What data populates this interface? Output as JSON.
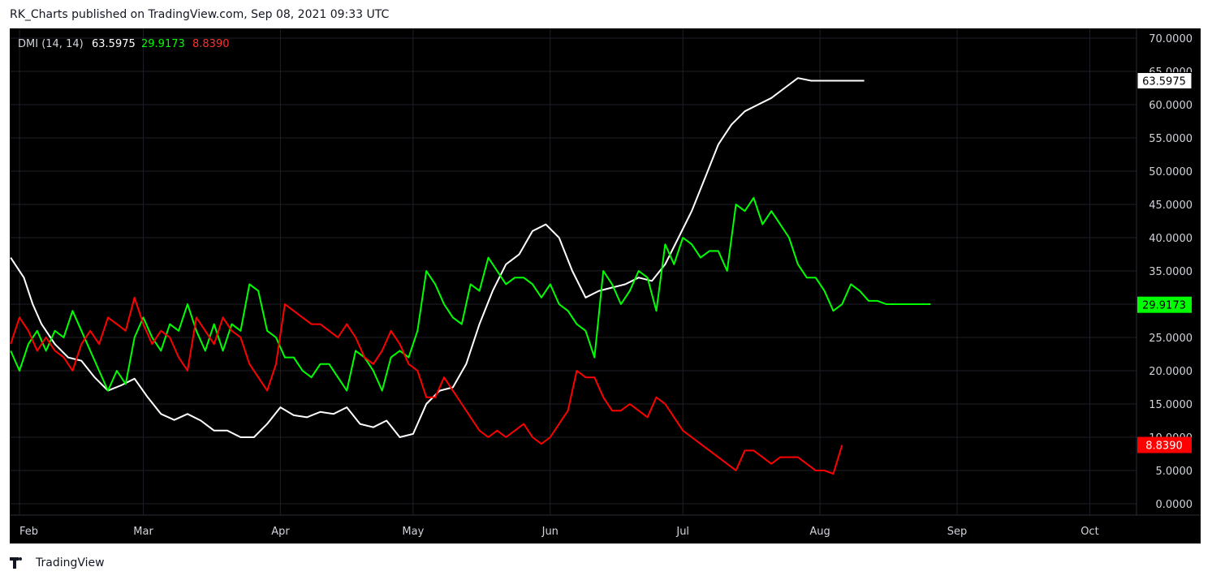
{
  "header": {
    "text": "RK_Charts published on TradingView.com, Sep 08, 2021 09:33 UTC"
  },
  "legend": {
    "name": "DMI (14, 14)",
    "adx_value": "63.5975",
    "plus_di_value": "29.9173",
    "minus_di_value": "8.8390"
  },
  "footer": {
    "brand": "TradingView"
  },
  "colors": {
    "background": "#000000",
    "grid": "#1e2028",
    "adx": "#ffffff",
    "plus_di": "#00ff00",
    "minus_di": "#ff0000",
    "axis_text": "#d1d4dc"
  },
  "chart_data": {
    "type": "line",
    "title": "DMI (14, 14)",
    "ylim": [
      -2,
      72
    ],
    "y_ticks": [
      "0.0000",
      "5.0000",
      "10.0000",
      "15.0000",
      "20.0000",
      "25.0000",
      "30.0000",
      "35.0000",
      "40.0000",
      "45.0000",
      "50.0000",
      "55.0000",
      "60.0000",
      "65.0000",
      "70.0000"
    ],
    "x_labels": [
      "Feb",
      "Mar",
      "Apr",
      "May",
      "Jun",
      "Jul",
      "Aug",
      "Sep",
      "Oct"
    ],
    "x_label_days": [
      0,
      28,
      59,
      89,
      120,
      150,
      181,
      212,
      242
    ],
    "x_range": [
      0,
      251
    ],
    "grid": true,
    "last_value_labels": [
      {
        "series": "ADX",
        "value": 63.5975,
        "text": "63.5975"
      },
      {
        "series": "+DI",
        "value": 29.9173,
        "text": "29.9173"
      },
      {
        "series": "-DI",
        "value": 8.839,
        "text": "8.8390"
      }
    ],
    "series": [
      {
        "name": "ADX",
        "color": "#ffffff",
        "x": [
          -2,
          1,
          3,
          5,
          8,
          11,
          14,
          17,
          20,
          23,
          26,
          29,
          32,
          35,
          38,
          41,
          44,
          47,
          50,
          53,
          56,
          59,
          62,
          65,
          68,
          71,
          74,
          77,
          80,
          83,
          86,
          89,
          92,
          95,
          98,
          101,
          104,
          107,
          110,
          113,
          116,
          119,
          122,
          125,
          128,
          131,
          134,
          137,
          140,
          143,
          146,
          149,
          152,
          155,
          158,
          161,
          164,
          167,
          170,
          173,
          176,
          179,
          182,
          185,
          188,
          191,
          194,
          197,
          200,
          203,
          206,
          209,
          212,
          215,
          218,
          220
        ],
        "values": [
          37,
          34,
          30,
          27,
          24,
          22,
          21.5,
          19,
          17,
          17.8,
          18.8,
          16,
          13.5,
          12.6,
          13.5,
          12.5,
          11,
          11,
          10,
          10,
          12,
          14.5,
          13.3,
          13,
          13.8,
          13.5,
          14.5,
          12,
          11.5,
          12.5,
          10,
          10.5,
          15,
          17,
          17.5,
          21,
          27,
          32,
          36,
          37.5,
          41,
          42,
          40,
          35,
          31,
          32,
          32.5,
          33,
          34,
          33.5,
          36,
          40,
          44,
          49,
          54,
          57,
          59,
          60,
          61,
          62.5,
          64,
          63.6,
          63.6,
          63.6,
          63.6,
          63.6,
          63.6,
          63.6,
          63.6,
          63.6,
          63.6,
          63.6,
          63.6,
          63.6,
          63.6,
          63.6
        ]
      },
      {
        "name": "+DI",
        "color": "#00ff00",
        "x": [
          -2,
          0,
          2,
          4,
          6,
          8,
          10,
          12,
          14,
          16,
          18,
          20,
          22,
          24,
          26,
          28,
          30,
          32,
          34,
          36,
          38,
          40,
          42,
          44,
          46,
          48,
          50,
          52,
          54,
          56,
          58,
          60,
          62,
          64,
          66,
          68,
          70,
          72,
          74,
          76,
          78,
          80,
          82,
          84,
          86,
          88,
          90,
          92,
          94,
          96,
          98,
          100,
          102,
          104,
          106,
          108,
          110,
          112,
          114,
          116,
          118,
          120,
          122,
          124,
          126,
          128,
          130,
          132,
          134,
          136,
          138,
          140,
          142,
          144,
          146,
          148,
          150,
          152,
          154,
          156,
          158,
          160,
          162,
          164,
          166,
          168,
          170,
          172,
          174,
          176,
          178,
          180,
          182,
          184,
          186,
          188,
          190,
          192,
          194,
          196,
          198,
          200,
          202,
          204,
          206,
          208,
          210,
          212,
          214,
          216,
          218,
          220
        ],
        "values": [
          23,
          20,
          24,
          26,
          23,
          26,
          25,
          29,
          26,
          23,
          20,
          17,
          20,
          18,
          25,
          28,
          25,
          23,
          27,
          26,
          30,
          26,
          23,
          27,
          23,
          27,
          26,
          33,
          32,
          26,
          25,
          22,
          22,
          20,
          19,
          21,
          21,
          19,
          17,
          23,
          22,
          20,
          17,
          22,
          23,
          22,
          26,
          35,
          33,
          30,
          28,
          27,
          33,
          32,
          37,
          35,
          33,
          34,
          34,
          33,
          31,
          33,
          30,
          29,
          27,
          26,
          22,
          35,
          33,
          30,
          32,
          35,
          34,
          29,
          39,
          36,
          40,
          39,
          37,
          38,
          38,
          35,
          45,
          44,
          46,
          42,
          44,
          42,
          40,
          36,
          34,
          34,
          32,
          29,
          30,
          33,
          32,
          30.5,
          30.5,
          30,
          30,
          30,
          30,
          30,
          30,
          30,
          30,
          30,
          30,
          30,
          30,
          30
        ],
        "note_end_index": 104
      },
      {
        "name": "-DI",
        "color": "#ff0000",
        "x": [
          -2,
          0,
          2,
          4,
          6,
          8,
          10,
          12,
          14,
          16,
          18,
          20,
          22,
          24,
          26,
          28,
          30,
          32,
          34,
          36,
          38,
          40,
          42,
          44,
          46,
          48,
          50,
          52,
          54,
          56,
          58,
          60,
          62,
          64,
          66,
          68,
          70,
          72,
          74,
          76,
          78,
          80,
          82,
          84,
          86,
          88,
          90,
          92,
          94,
          96,
          98,
          100,
          102,
          104,
          106,
          108,
          110,
          112,
          114,
          116,
          118,
          120,
          122,
          124,
          126,
          128,
          130,
          132,
          134,
          136,
          138,
          140,
          142,
          144,
          146,
          148,
          150,
          152,
          154,
          156,
          158,
          160,
          162,
          164,
          166,
          168,
          170,
          172,
          174,
          176,
          178,
          180,
          182,
          184,
          186,
          188,
          190,
          192,
          194,
          196,
          198,
          200,
          202,
          204,
          206,
          208,
          210,
          212,
          214,
          216,
          218,
          220
        ],
        "values": [
          24,
          28,
          26,
          23,
          25,
          23,
          22,
          20,
          24,
          26,
          24,
          28,
          27,
          26,
          31,
          27,
          24,
          26,
          25,
          22,
          20,
          28,
          26,
          24,
          28,
          26,
          25,
          21,
          19,
          17,
          21,
          30,
          29,
          28,
          27,
          27,
          26,
          25,
          27,
          25,
          22,
          21,
          23,
          26,
          24,
          21,
          20,
          16,
          16,
          19,
          17,
          15,
          13,
          11,
          10,
          11,
          10,
          11,
          12,
          10,
          9,
          10,
          12,
          14,
          20,
          19,
          19,
          16,
          14,
          14,
          15,
          14,
          13,
          16,
          15,
          13,
          11,
          10,
          9,
          8,
          7,
          6,
          5,
          8,
          8,
          7,
          6,
          7,
          7,
          7,
          6,
          5,
          5,
          4.5,
          8.8,
          8.8,
          8.8,
          8.8,
          8.8,
          8.8,
          8.8,
          8.8,
          8.8,
          8.8,
          8.8,
          8.8,
          8.8,
          8.8,
          8.8,
          8.8,
          8.8,
          8.8
        ]
      }
    ]
  }
}
